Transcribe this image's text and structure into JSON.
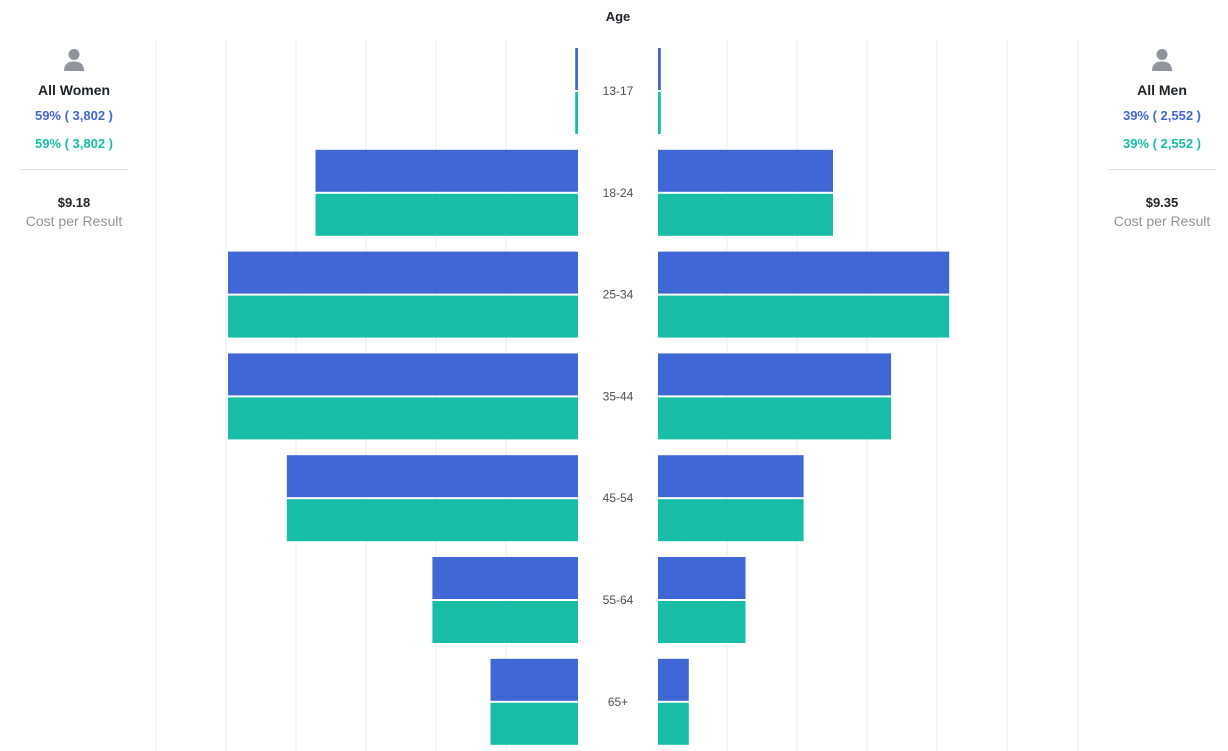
{
  "chart_data": {
    "type": "bar",
    "xlabel": "Age",
    "categories": [
      "13-17",
      "18-24",
      "25-34",
      "35-44",
      "45-54",
      "55-64",
      "65+"
    ],
    "series": [
      {
        "group": "All Women",
        "color": "#4167d6",
        "values": [
          0.4,
          37.5,
          50.0,
          50.0,
          41.6,
          20.8,
          12.5
        ]
      },
      {
        "group": "All Women",
        "color": "#17bda6",
        "values": [
          0.4,
          37.5,
          50.0,
          50.0,
          41.6,
          20.8,
          12.5
        ]
      },
      {
        "group": "All Men",
        "color": "#4167d6",
        "values": [
          0.4,
          25.0,
          41.6,
          33.3,
          20.8,
          12.5,
          4.4
        ]
      },
      {
        "group": "All Men",
        "color": "#17bda6",
        "values": [
          0.4,
          25.0,
          41.6,
          33.3,
          20.8,
          12.5,
          4.4
        ]
      }
    ],
    "xlim": [
      0,
      50
    ],
    "grid": true
  },
  "women": {
    "icon": "person-icon",
    "title": "All Women",
    "stat_primary": "59% ( 3,802 )",
    "stat_secondary": "59% ( 3,802 )",
    "cost_value": "$9.18",
    "cost_label": "Cost per Result"
  },
  "men": {
    "icon": "person-icon",
    "title": "All Men",
    "stat_primary": "39% ( 2,552 )",
    "stat_secondary": "39% ( 2,552 )",
    "cost_value": "$9.35",
    "cost_label": "Cost per Result"
  },
  "colors": {
    "primary": "#4167d6",
    "secondary": "#17bda6",
    "grid": "#ebedf0",
    "icon": "#90949c"
  }
}
